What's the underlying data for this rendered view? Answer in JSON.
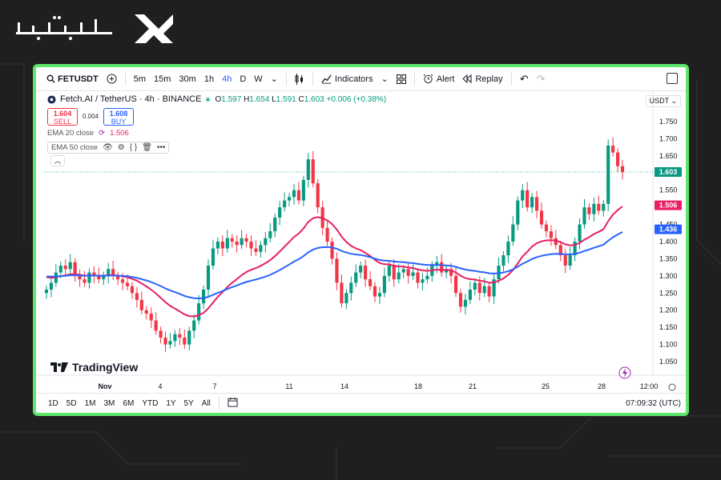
{
  "brand": {
    "logo_text": "تیوبیت"
  },
  "toolbar": {
    "symbol": "FETUSDT",
    "intervals": [
      "5m",
      "15m",
      "30m",
      "1h",
      "4h",
      "D",
      "W"
    ],
    "active_interval": "4h",
    "indicators_label": "Indicators",
    "alert_label": "Alert",
    "replay_label": "Replay"
  },
  "legend": {
    "title": "Fetch.AI / TetherUS · 4h · BINANCE",
    "open_label": "O",
    "open": "1.597",
    "high_label": "H",
    "high": "1.654",
    "low_label": "L",
    "low": "1.591",
    "close_label": "C",
    "close": "1.603",
    "change": "+0.006 (+0.38%)"
  },
  "trade": {
    "sell_price": "1.604",
    "sell_label": "SELL",
    "buy_price": "1.608",
    "buy_label": "BUY",
    "spread": "0.004"
  },
  "ema": [
    {
      "label": "EMA 20 close",
      "value": "1.506"
    },
    {
      "label": "EMA 50 close"
    }
  ],
  "currency": "USDT",
  "tradingview_label": "TradingView",
  "bottombar": {
    "ranges": [
      "1D",
      "5D",
      "1M",
      "3M",
      "6M",
      "YTD",
      "1Y",
      "5Y",
      "All"
    ],
    "clock": "07:09:32 (UTC)"
  },
  "chart_data": {
    "type": "candlestick",
    "price_axis": {
      "min": 1.05,
      "max": 1.75,
      "ticks": [
        "1.750",
        "1.700",
        "1.650",
        "1.600",
        "1.550",
        "1.500",
        "1.450",
        "1.400",
        "1.350",
        "1.300",
        "1.250",
        "1.200",
        "1.150",
        "1.100",
        "1.050"
      ]
    },
    "time_axis": {
      "labels": [
        "Nov",
        "4",
        "7",
        "11",
        "14",
        "18",
        "21",
        "25",
        "28",
        "12:00"
      ]
    },
    "badges": [
      {
        "value": "1.603",
        "color": "#089981"
      },
      {
        "value": "1.506",
        "color": "#e91e63"
      },
      {
        "value": "1.436",
        "color": "#2962ff"
      }
    ],
    "close_series": [
      1.26,
      1.28,
      1.31,
      1.33,
      1.32,
      1.34,
      1.3,
      1.29,
      1.28,
      1.31,
      1.3,
      1.29,
      1.3,
      1.32,
      1.3,
      1.29,
      1.28,
      1.27,
      1.25,
      1.23,
      1.2,
      1.19,
      1.17,
      1.14,
      1.12,
      1.1,
      1.11,
      1.13,
      1.12,
      1.1,
      1.14,
      1.17,
      1.22,
      1.26,
      1.33,
      1.38,
      1.4,
      1.38,
      1.41,
      1.4,
      1.39,
      1.41,
      1.4,
      1.38,
      1.37,
      1.39,
      1.41,
      1.43,
      1.47,
      1.5,
      1.52,
      1.53,
      1.55,
      1.52,
      1.58,
      1.64,
      1.57,
      1.5,
      1.44,
      1.4,
      1.35,
      1.28,
      1.22,
      1.25,
      1.28,
      1.31,
      1.33,
      1.29,
      1.27,
      1.24,
      1.25,
      1.3,
      1.33,
      1.29,
      1.31,
      1.32,
      1.3,
      1.31,
      1.28,
      1.29,
      1.3,
      1.33,
      1.34,
      1.31,
      1.32,
      1.3,
      1.25,
      1.21,
      1.23,
      1.26,
      1.28,
      1.25,
      1.27,
      1.24,
      1.29,
      1.33,
      1.36,
      1.4,
      1.45,
      1.52,
      1.55,
      1.5,
      1.53,
      1.49,
      1.45,
      1.43,
      1.41,
      1.39,
      1.36,
      1.33,
      1.36,
      1.4,
      1.45,
      1.5,
      1.48,
      1.51,
      1.49,
      1.51,
      1.68,
      1.66,
      1.62,
      1.603
    ],
    "series": [
      {
        "name": "EMA 20 close",
        "color": "#e91e63"
      },
      {
        "name": "EMA 50 close",
        "color": "#2962ff"
      }
    ],
    "colors": {
      "up": "#089981",
      "down": "#f23645",
      "last_line": "#089981"
    }
  }
}
